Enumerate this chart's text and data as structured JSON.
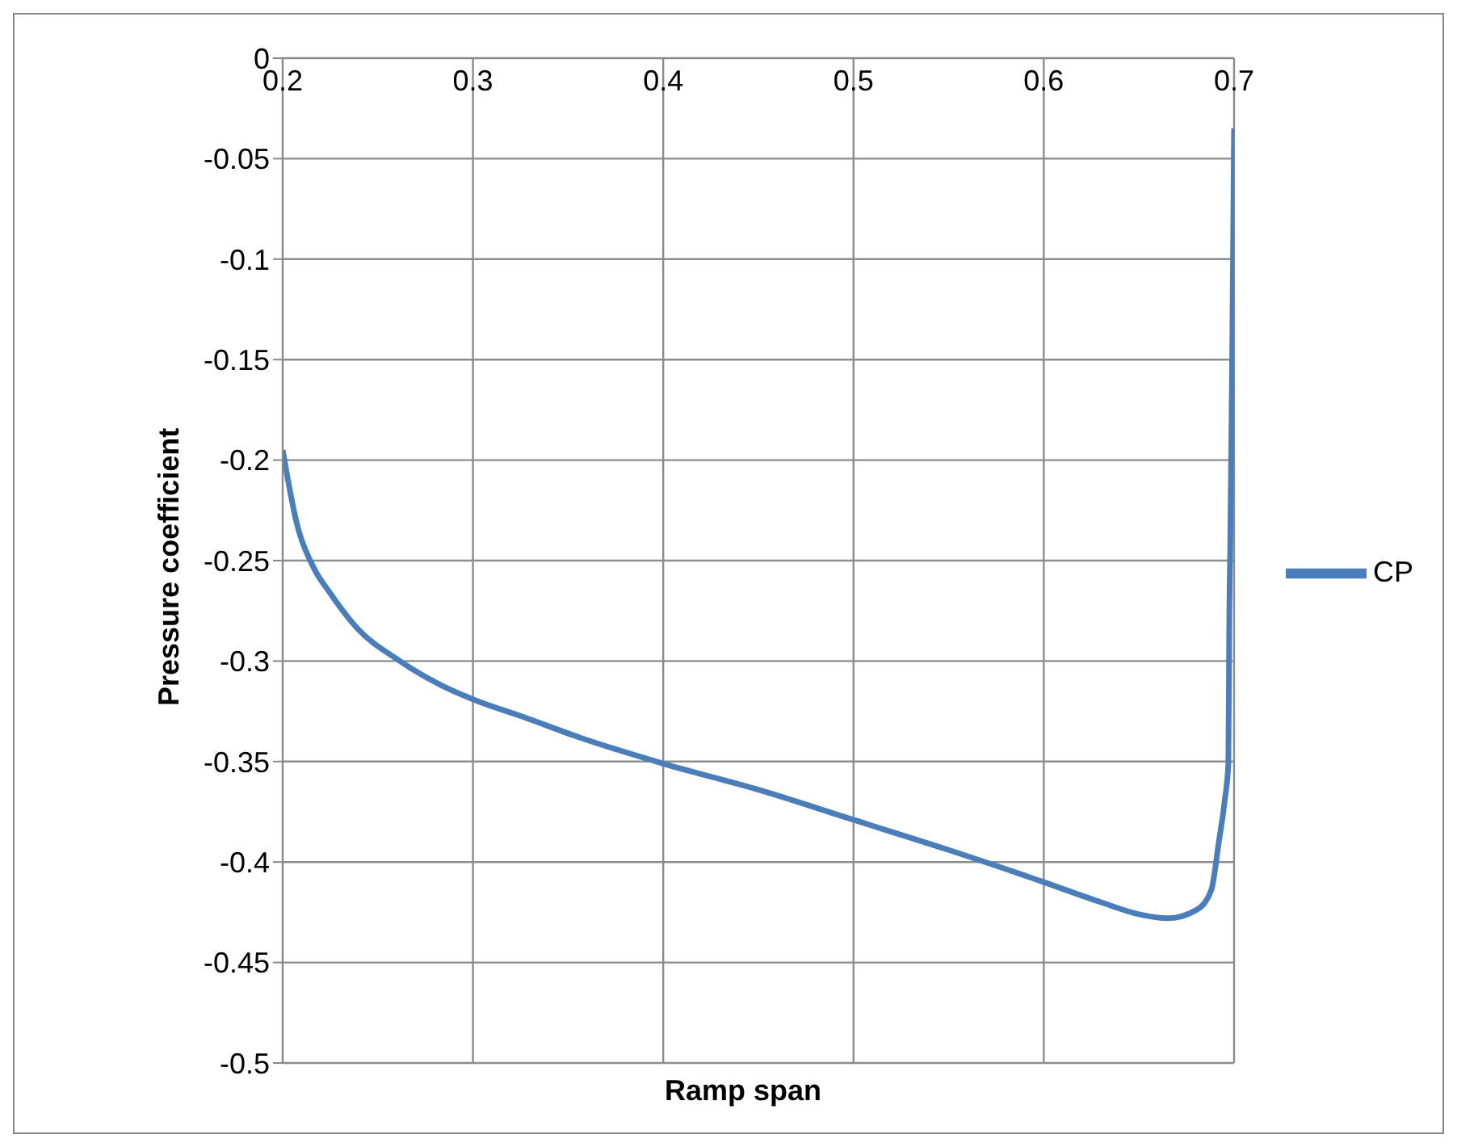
{
  "chart_data": {
    "type": "line",
    "xlabel": "Ramp span",
    "ylabel": "Pressure coefficient",
    "x": [
      0.2,
      0.2073,
      0.216,
      0.2248,
      0.2395,
      0.26,
      0.2833,
      0.3,
      0.327,
      0.356,
      0.4,
      0.45,
      0.5,
      0.55,
      0.6,
      0.63,
      0.65,
      0.665,
      0.68,
      0.688,
      0.692,
      0.695,
      0.697,
      0.6975,
      0.698,
      0.699,
      0.7
    ],
    "series": [
      {
        "name": "CP",
        "color": "#4a7ebb",
        "values": [
          -0.195,
          -0.231,
          -0.253,
          -0.266,
          -0.284,
          -0.299,
          -0.312,
          -0.319,
          -0.328,
          -0.338,
          -0.351,
          -0.364,
          -0.379,
          -0.394,
          -0.41,
          -0.42,
          -0.426,
          -0.428,
          -0.424,
          -0.414,
          -0.39,
          -0.37,
          -0.351,
          -0.277,
          -0.242,
          -0.15,
          -0.035
        ]
      }
    ],
    "xlim": [
      0.2,
      0.7
    ],
    "xticks": [
      0.2,
      0.3,
      0.4,
      0.5,
      0.6,
      0.7
    ],
    "ylim": [
      -0.5,
      0
    ],
    "yticks": [
      -0.5,
      -0.45,
      -0.4,
      -0.35,
      -0.3,
      -0.25,
      -0.2,
      -0.15,
      -0.1,
      -0.05,
      0
    ],
    "grid": true,
    "legend": "right",
    "marker": "none",
    "line_style": "solid"
  }
}
